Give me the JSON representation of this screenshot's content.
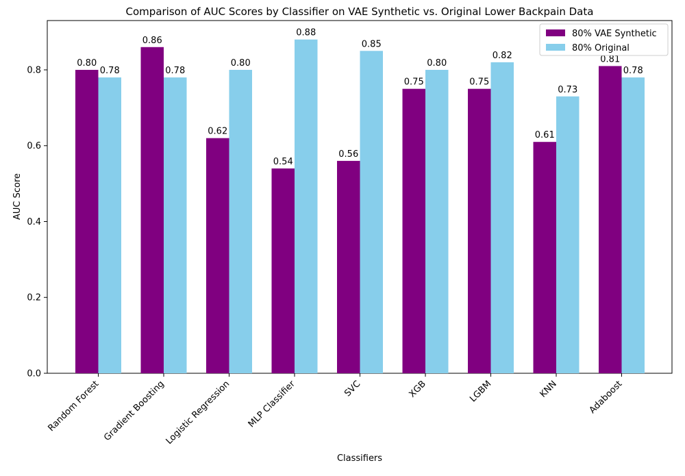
{
  "chart_data": {
    "type": "bar",
    "title": "Comparison of AUC Scores by Classifier on VAE Synthetic vs. Original Lower Backpain Data",
    "xlabel": "Classifiers",
    "ylabel": "AUC Score",
    "ylim": [
      0,
      0.93
    ],
    "yticks": [
      0.0,
      0.2,
      0.4,
      0.6,
      0.8
    ],
    "ytick_labels": [
      "0.0",
      "0.2",
      "0.4",
      "0.6",
      "0.8"
    ],
    "grid": false,
    "legend_position": "top-right",
    "categories": [
      "Random Forest",
      "Gradient Boosting",
      "Logistic Regression",
      "MLP Classifier",
      "SVC",
      "XGB",
      "LGBM",
      "KNN",
      "Adaboost"
    ],
    "series": [
      {
        "name": "80% VAE Synthetic",
        "color": "#800080",
        "values": [
          0.8,
          0.86,
          0.62,
          0.54,
          0.56,
          0.75,
          0.75,
          0.61,
          0.81
        ],
        "value_labels": [
          "0.80",
          "0.86",
          "0.62",
          "0.54",
          "0.56",
          "0.75",
          "0.75",
          "0.61",
          "0.81"
        ]
      },
      {
        "name": "80% Original",
        "color": "#87CEEB",
        "values": [
          0.78,
          0.78,
          0.8,
          0.88,
          0.85,
          0.8,
          0.82,
          0.73,
          0.78
        ],
        "value_labels": [
          "0.78",
          "0.78",
          "0.80",
          "0.88",
          "0.85",
          "0.80",
          "0.82",
          "0.73",
          "0.78"
        ]
      }
    ]
  }
}
